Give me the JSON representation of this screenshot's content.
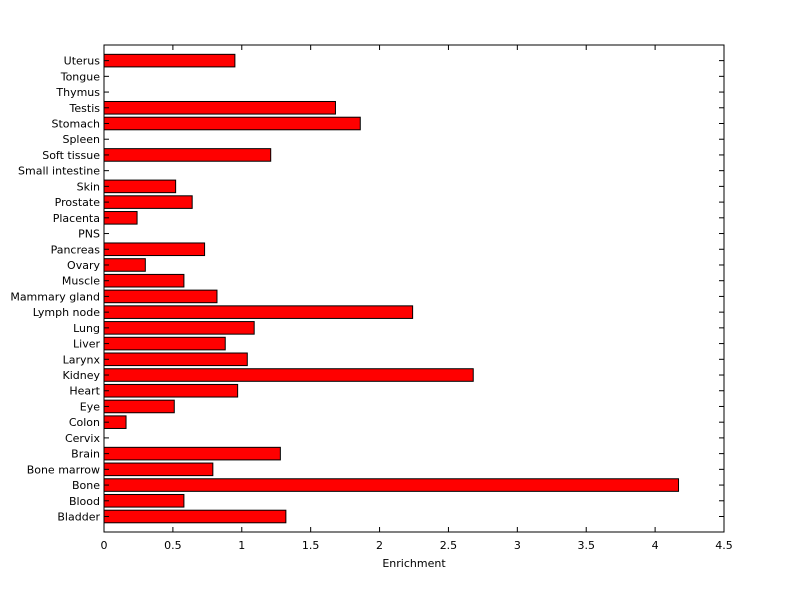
{
  "chart_data": {
    "type": "bar",
    "orientation": "horizontal",
    "title": "",
    "xlabel": "Enrichment",
    "ylabel": "",
    "xlim": [
      0,
      4.5
    ],
    "xticks": [
      0,
      0.5,
      1,
      1.5,
      2,
      2.5,
      3,
      3.5,
      4,
      4.5
    ],
    "xtick_labels": [
      "0",
      "0.5",
      "1",
      "1.5",
      "2",
      "2.5",
      "3",
      "3.5",
      "4",
      "4.5"
    ],
    "grid": false,
    "bar_color": "#ff0000",
    "bar_edge_color": "#000000",
    "categories": [
      "Bladder",
      "Blood",
      "Bone",
      "Bone marrow",
      "Brain",
      "Cervix",
      "Colon",
      "Eye",
      "Heart",
      "Kidney",
      "Larynx",
      "Liver",
      "Lung",
      "Lymph node",
      "Mammary gland",
      "Muscle",
      "Ovary",
      "Pancreas",
      "PNS",
      "Placenta",
      "Prostate",
      "Skin",
      "Small intestine",
      "Soft tissue",
      "Spleen",
      "Stomach",
      "Testis",
      "Thymus",
      "Tongue",
      "Uterus"
    ],
    "values": [
      1.32,
      0.58,
      4.17,
      0.79,
      1.28,
      0,
      0.16,
      0.51,
      0.97,
      2.68,
      1.04,
      0.88,
      1.09,
      2.24,
      0.82,
      0.58,
      0.3,
      0.73,
      0,
      0.24,
      0.64,
      0.52,
      0,
      1.21,
      0,
      1.86,
      1.68,
      0,
      0,
      0.95
    ]
  }
}
